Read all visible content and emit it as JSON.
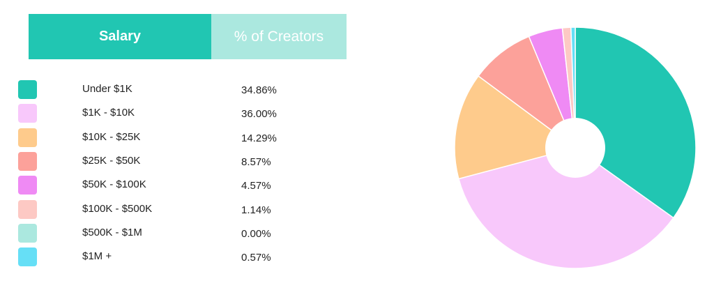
{
  "table": {
    "header_salary": "Salary",
    "header_pct": "% of Creators"
  },
  "chart_data": {
    "type": "pie",
    "donut": true,
    "categories": [
      "Under $1K",
      "$1K - $10K",
      "$10K - $25K",
      "$25K - $50K",
      "$50K - $100K",
      "$100K - $500K",
      "$500K - $1M",
      "$1M +"
    ],
    "values": [
      34.86,
      36.0,
      14.29,
      8.57,
      4.57,
      1.14,
      0.0,
      0.57
    ],
    "value_labels": [
      "34.86%",
      "36.00%",
      "14.29%",
      "8.57%",
      "4.57%",
      "1.14%",
      "0.00%",
      "0.57%"
    ],
    "colors": [
      "#21c6b2",
      "#f8c8fb",
      "#fecb8c",
      "#fca19a",
      "#ef8af4",
      "#fdc9c4",
      "#abe8df",
      "#66dff6"
    ],
    "legend_placement": "left"
  }
}
